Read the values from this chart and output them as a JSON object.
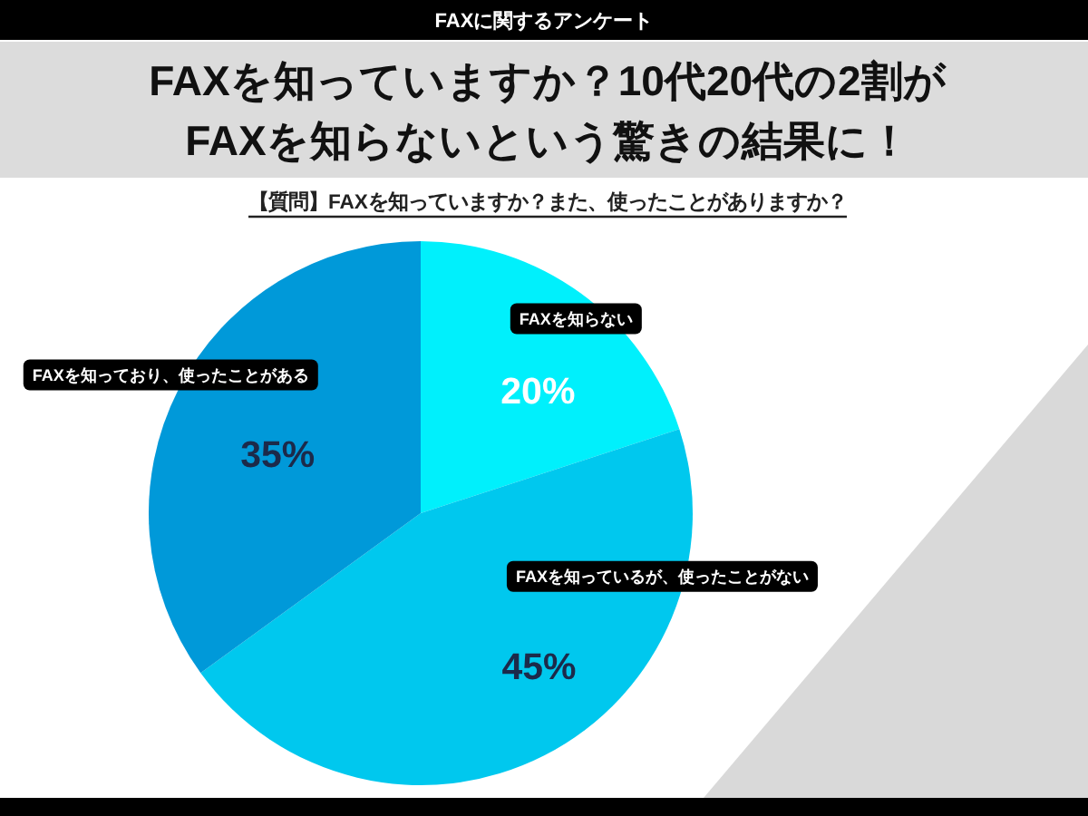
{
  "chart_data": {
    "type": "pie",
    "title": "FAXを知っていますか？10代20代の2割が\nFAXを知らないという驚きの結果に！",
    "subtitle": "【質問】FAXを知っていますか？また、使ったことがありますか？",
    "annotations": [
      "FAXに関するアンケート"
    ],
    "categories": [
      "FAXを知らない",
      "FAXを知っているが、使ったことがない",
      "FAXを知っており、使ったことがある"
    ],
    "values": [
      20,
      45,
      35
    ],
    "colors": [
      "#00f0fc",
      "#00c8ee",
      "#0099d9"
    ],
    "value_labels": [
      "20%",
      "45%",
      "35%"
    ]
  }
}
